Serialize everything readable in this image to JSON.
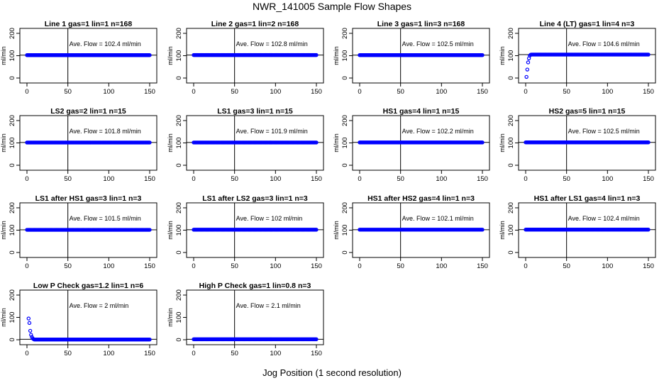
{
  "page": {
    "title": "NWR_141005  Sample Flow Shapes",
    "xlabel": "Jog Position (1 second resolution)"
  },
  "colors": {
    "points": "#0000ff",
    "axes": "#000000",
    "background": "#ffffff"
  },
  "chart_data": [
    {
      "type": "scatter",
      "title": "Line 1 gas=1 lin=1 n=168",
      "annotation": "Ave. Flow = 102.4  ml/min",
      "ylabel": "ml/min",
      "xlim": [
        0,
        150
      ],
      "ylim": [
        0,
        200
      ],
      "xticks": [
        0,
        50,
        100,
        150
      ],
      "yticks": [
        0,
        100,
        200
      ],
      "vline": 50,
      "hline": 102.4,
      "series": [
        {
          "x_range": [
            0,
            150
          ],
          "y": 102.4
        }
      ]
    },
    {
      "type": "scatter",
      "title": "Line 2 gas=1 lin=2 n=168",
      "annotation": "Ave. Flow = 102.8  ml/min",
      "ylabel": "ml/min",
      "xlim": [
        0,
        150
      ],
      "ylim": [
        0,
        200
      ],
      "xticks": [
        0,
        50,
        100,
        150
      ],
      "yticks": [
        0,
        100,
        200
      ],
      "vline": 50,
      "hline": 102.8,
      "series": [
        {
          "x_range": [
            0,
            150
          ],
          "y": 102.8
        }
      ]
    },
    {
      "type": "scatter",
      "title": "Line 3 gas=1 lin=3 n=168",
      "annotation": "Ave. Flow = 102.5  ml/min",
      "ylabel": "ml/min",
      "xlim": [
        0,
        150
      ],
      "ylim": [
        0,
        200
      ],
      "xticks": [
        0,
        50,
        100,
        150
      ],
      "yticks": [
        0,
        100,
        200
      ],
      "vline": 50,
      "hline": 102.5,
      "series": [
        {
          "x_range": [
            0,
            150
          ],
          "y": 102.5
        }
      ]
    },
    {
      "type": "scatter",
      "title": "Line 4 (LT) gas=1 lin=4 n=3",
      "annotation": "Ave. Flow = 104.6  ml/min",
      "ylabel": "ml/min",
      "xlim": [
        0,
        150
      ],
      "ylim": [
        0,
        200
      ],
      "xticks": [
        0,
        50,
        100,
        150
      ],
      "yticks": [
        0,
        100,
        200
      ],
      "vline": 50,
      "hline": 104.6,
      "series": [
        {
          "points": [
            [
              1,
              5
            ],
            [
              2,
              38
            ],
            [
              3,
              70
            ],
            [
              4,
              88
            ],
            [
              5,
              100
            ],
            [
              6,
              104
            ]
          ],
          "x_range": [
            7,
            150
          ],
          "y": 105
        }
      ]
    },
    {
      "type": "scatter",
      "title": "LS2 gas=2 lin=1 n=15",
      "annotation": "Ave. Flow = 101.8  ml/min",
      "ylabel": "ml/min",
      "xlim": [
        0,
        150
      ],
      "ylim": [
        0,
        200
      ],
      "xticks": [
        0,
        50,
        100,
        150
      ],
      "yticks": [
        0,
        100,
        200
      ],
      "vline": 50,
      "hline": 101.8,
      "series": [
        {
          "x_range": [
            0,
            150
          ],
          "y": 101.8
        }
      ]
    },
    {
      "type": "scatter",
      "title": "LS1 gas=3 lin=1 n=15",
      "annotation": "Ave. Flow = 101.9  ml/min",
      "ylabel": "ml/min",
      "xlim": [
        0,
        150
      ],
      "ylim": [
        0,
        200
      ],
      "xticks": [
        0,
        50,
        100,
        150
      ],
      "yticks": [
        0,
        100,
        200
      ],
      "vline": 50,
      "hline": 101.9,
      "series": [
        {
          "x_range": [
            0,
            150
          ],
          "y": 101.9
        }
      ]
    },
    {
      "type": "scatter",
      "title": "HS1 gas=4 lin=1 n=15",
      "annotation": "Ave. Flow = 102.2  ml/min",
      "ylabel": "ml/min",
      "xlim": [
        0,
        150
      ],
      "ylim": [
        0,
        200
      ],
      "xticks": [
        0,
        50,
        100,
        150
      ],
      "yticks": [
        0,
        100,
        200
      ],
      "vline": 50,
      "hline": 102.2,
      "series": [
        {
          "x_range": [
            0,
            150
          ],
          "y": 102.2
        }
      ]
    },
    {
      "type": "scatter",
      "title": "HS2 gas=5 lin=1 n=15",
      "annotation": "Ave. Flow = 102.5  ml/min",
      "ylabel": "ml/min",
      "xlim": [
        0,
        150
      ],
      "ylim": [
        0,
        200
      ],
      "xticks": [
        0,
        50,
        100,
        150
      ],
      "yticks": [
        0,
        100,
        200
      ],
      "vline": 50,
      "hline": 102.5,
      "series": [
        {
          "x_range": [
            0,
            150
          ],
          "y": 102.5
        }
      ]
    },
    {
      "type": "scatter",
      "title": "LS1 after HS1 gas=3 lin=1 n=3",
      "annotation": "Ave. Flow = 101.5  ml/min",
      "ylabel": "ml/min",
      "xlim": [
        0,
        150
      ],
      "ylim": [
        0,
        200
      ],
      "xticks": [
        0,
        50,
        100,
        150
      ],
      "yticks": [
        0,
        100,
        200
      ],
      "vline": 50,
      "hline": 101.5,
      "series": [
        {
          "x_range": [
            0,
            150
          ],
          "y": 101.5
        }
      ]
    },
    {
      "type": "scatter",
      "title": "LS1 after LS2 gas=3 lin=1 n=3",
      "annotation": "Ave. Flow = 102  ml/min",
      "ylabel": "ml/min",
      "xlim": [
        0,
        150
      ],
      "ylim": [
        0,
        200
      ],
      "xticks": [
        0,
        50,
        100,
        150
      ],
      "yticks": [
        0,
        100,
        200
      ],
      "vline": 50,
      "hline": 102,
      "series": [
        {
          "x_range": [
            0,
            150
          ],
          "y": 102
        }
      ]
    },
    {
      "type": "scatter",
      "title": "HS1 after HS2 gas=4 lin=1 n=3",
      "annotation": "Ave. Flow = 102.1  ml/min",
      "ylabel": "ml/min",
      "xlim": [
        0,
        150
      ],
      "ylim": [
        0,
        200
      ],
      "xticks": [
        0,
        50,
        100,
        150
      ],
      "yticks": [
        0,
        100,
        200
      ],
      "vline": 50,
      "hline": 102.1,
      "series": [
        {
          "x_range": [
            0,
            150
          ],
          "y": 102.1
        }
      ]
    },
    {
      "type": "scatter",
      "title": "HS1 after LS1 gas=4 lin=1 n=3",
      "annotation": "Ave. Flow = 102.4  ml/min",
      "ylabel": "ml/min",
      "xlim": [
        0,
        150
      ],
      "ylim": [
        0,
        200
      ],
      "xticks": [
        0,
        50,
        100,
        150
      ],
      "yticks": [
        0,
        100,
        200
      ],
      "vline": 50,
      "hline": 102.4,
      "series": [
        {
          "x_range": [
            0,
            150
          ],
          "y": 102.4
        }
      ]
    },
    {
      "type": "scatter",
      "title": "Low P Check gas=1.2 lin=1 n=6",
      "annotation": "Ave. Flow = 2  ml/min",
      "ylabel": "ml/min",
      "xlim": [
        0,
        150
      ],
      "ylim": [
        0,
        200
      ],
      "xticks": [
        0,
        50,
        100,
        150
      ],
      "yticks": [
        0,
        100,
        200
      ],
      "vline": 50,
      "hline": 2,
      "series": [
        {
          "points": [
            [
              2,
              95
            ],
            [
              3,
              75
            ],
            [
              4,
              40
            ],
            [
              5,
              22
            ],
            [
              6,
              12
            ],
            [
              7,
              6
            ],
            [
              8,
              3
            ]
          ],
          "x_range": [
            9,
            150
          ],
          "y": 1
        }
      ]
    },
    {
      "type": "scatter",
      "title": "High P Check gas=1 lin=0.8 n=3",
      "annotation": "Ave. Flow = 2.1  ml/min",
      "ylabel": "ml/min",
      "xlim": [
        0,
        150
      ],
      "ylim": [
        0,
        200
      ],
      "xticks": [
        0,
        50,
        100,
        150
      ],
      "yticks": [
        0,
        100,
        200
      ],
      "vline": 50,
      "hline": 2.1,
      "series": [
        {
          "x_range": [
            0,
            150
          ],
          "y": 2
        }
      ]
    }
  ]
}
